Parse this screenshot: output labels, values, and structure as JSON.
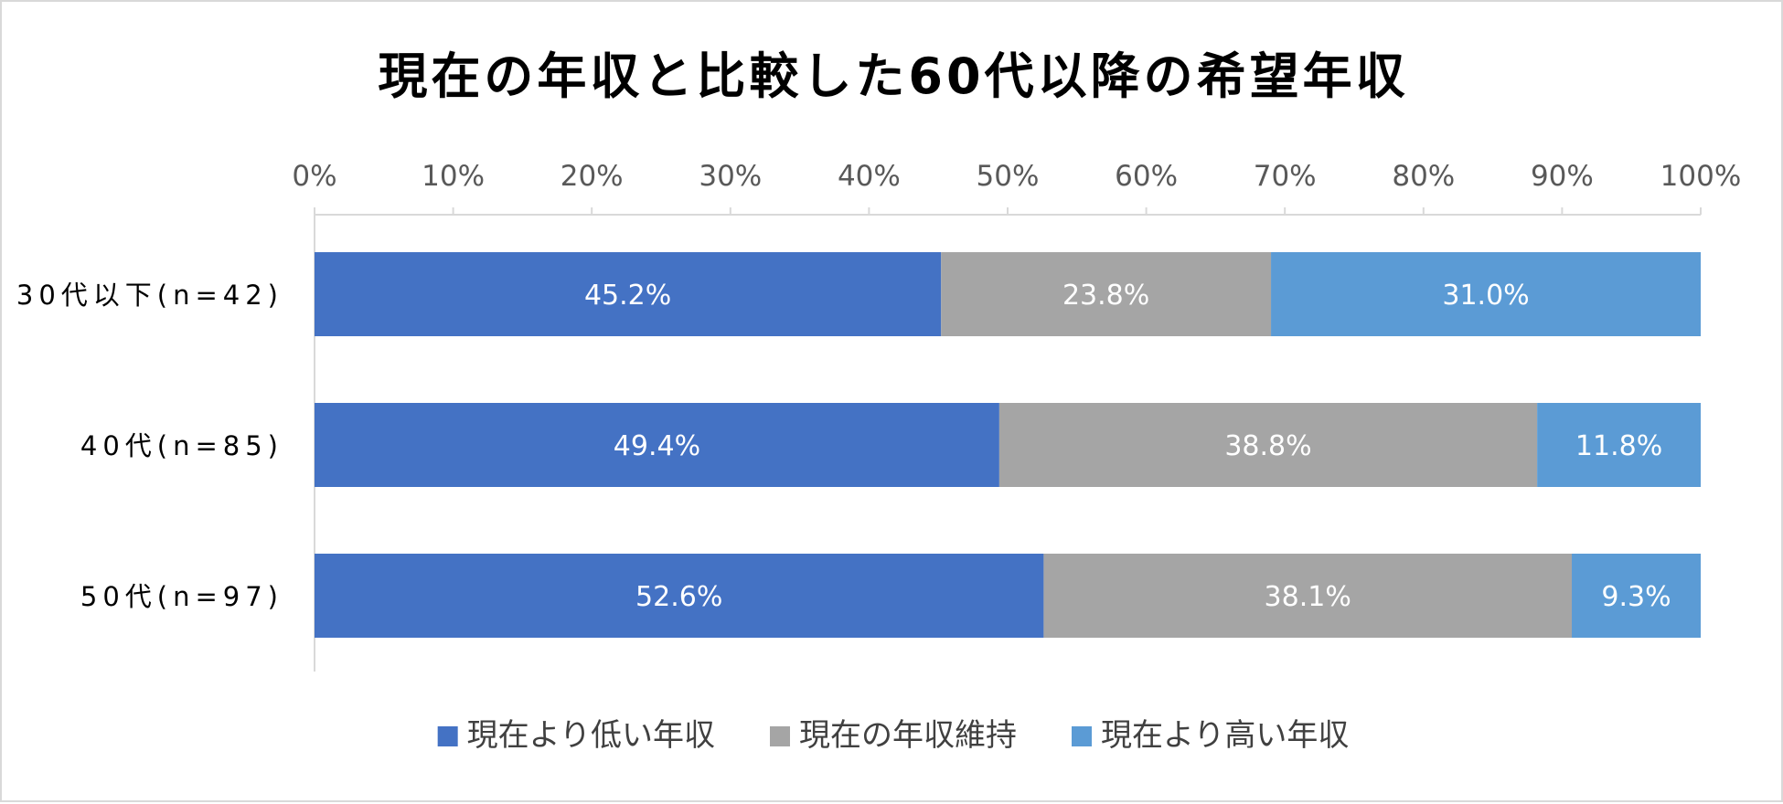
{
  "chart_data": {
    "type": "bar",
    "orientation": "horizontal",
    "stacked": "percent",
    "title": "現在の年収と比較した60代以降の希望年収",
    "categories": [
      "30代以下(n=42)",
      "40代(n=85)",
      "50代(n=97)"
    ],
    "series": [
      {
        "name": "現在より低い年収",
        "values": [
          45.2,
          49.4,
          52.6
        ],
        "labels": [
          "45.2%",
          "49.4%",
          "52.6%"
        ],
        "color": "#4472C4"
      },
      {
        "name": "現在の年収維持",
        "values": [
          23.8,
          38.8,
          38.1
        ],
        "labels": [
          "23.8%",
          "38.8%",
          "38.1%"
        ],
        "color": "#A5A5A5"
      },
      {
        "name": "現在より高い年収",
        "values": [
          31.0,
          11.8,
          9.3
        ],
        "labels": [
          "31.0%",
          "11.8%",
          "9.3%"
        ],
        "color": "#5B9BD5"
      }
    ],
    "x_ticks": [
      "0%",
      "10%",
      "20%",
      "30%",
      "40%",
      "50%",
      "60%",
      "70%",
      "80%",
      "90%",
      "100%"
    ],
    "xlim": [
      0,
      100
    ],
    "axis_position": "top",
    "grid": false,
    "legend_position": "bottom"
  }
}
